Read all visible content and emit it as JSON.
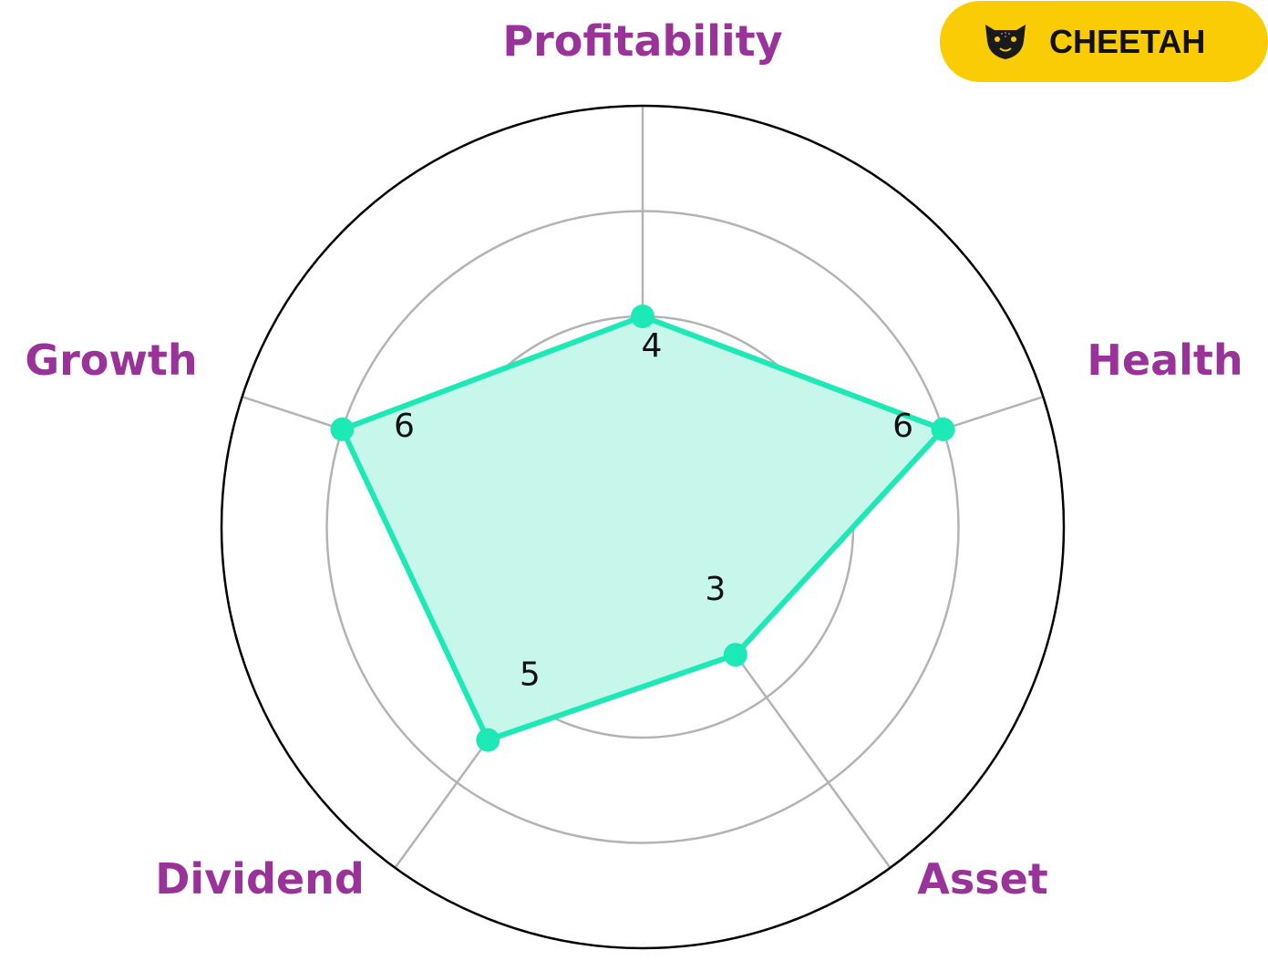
{
  "brand": {
    "name": "CHEETAH",
    "icon": "cheetah-head-icon",
    "badge_color": "#FACC06"
  },
  "chart_data": {
    "type": "radar",
    "axes": [
      "Profitability",
      "Health",
      "Asset",
      "Dividend",
      "Growth"
    ],
    "values": [
      4,
      6,
      3,
      5,
      6
    ],
    "value_labels": [
      "4",
      "6",
      "3",
      "5",
      "6"
    ],
    "rlim": [
      0,
      8
    ],
    "grid_rings": [
      2,
      4,
      6
    ],
    "grid": true,
    "colors": {
      "series": "#1DE9B6",
      "fill": "#C6F7EA",
      "axis_label": "#993399",
      "grid": "#B3B3B3",
      "outer_ring": "#000000"
    }
  }
}
